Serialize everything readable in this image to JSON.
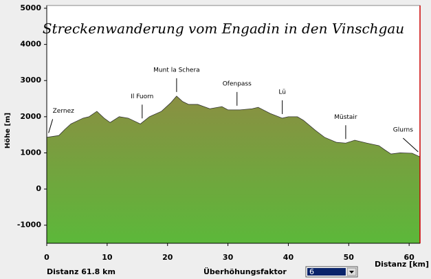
{
  "chart_data": {
    "type": "area",
    "title": "Streckenwanderung vom Engadin in den Vinschgau",
    "y_label": "Höhe [m]",
    "x_label": "Distanz [km]",
    "x": [
      0,
      2,
      3,
      4,
      6,
      7,
      8.3,
      9.5,
      10.5,
      12,
      13.5,
      15.5,
      17,
      19,
      20.5,
      21.5,
      22.5,
      23.5,
      25,
      27,
      29,
      30,
      32,
      34,
      35,
      37,
      39,
      40,
      41.5,
      42.5,
      44.5,
      46,
      48,
      49.5,
      51,
      53,
      55,
      56,
      57,
      58.5,
      60.5,
      61.8
    ],
    "values": [
      1430,
      1480,
      1650,
      1800,
      1960,
      2000,
      2150,
      1960,
      1840,
      2000,
      1960,
      1800,
      2000,
      2150,
      2380,
      2570,
      2420,
      2340,
      2340,
      2220,
      2280,
      2190,
      2190,
      2220,
      2260,
      2090,
      1960,
      2000,
      2000,
      1900,
      1620,
      1430,
      1290,
      1270,
      1350,
      1270,
      1200,
      1080,
      970,
      1000,
      990,
      890
    ],
    "color_top": "#8a8f42",
    "color_bottom": "#5cb83a",
    "xlim": [
      0,
      61.8
    ],
    "ylim": [
      -1500,
      5000
    ],
    "xticks": [
      0,
      10,
      20,
      30,
      40,
      50,
      60
    ],
    "yticks": [
      -1000,
      0,
      1000,
      2000,
      3000,
      4000,
      5000
    ],
    "annotations": [
      {
        "label": "Zernez",
        "x": 0.3
      },
      {
        "label": "Il Fuorn",
        "x": 15.8
      },
      {
        "label": "Munt la Schera",
        "x": 21.5
      },
      {
        "label": "Ofenpass",
        "x": 31.5
      },
      {
        "label": "Lü",
        "x": 39
      },
      {
        "label": "Müstair",
        "x": 49.5
      },
      {
        "label": "Glurns",
        "x": 61.5
      }
    ]
  },
  "status": {
    "distance": "Distanz 61.8 km",
    "factor_label": "Überhöhungsfaktor",
    "factor_value": "6"
  }
}
